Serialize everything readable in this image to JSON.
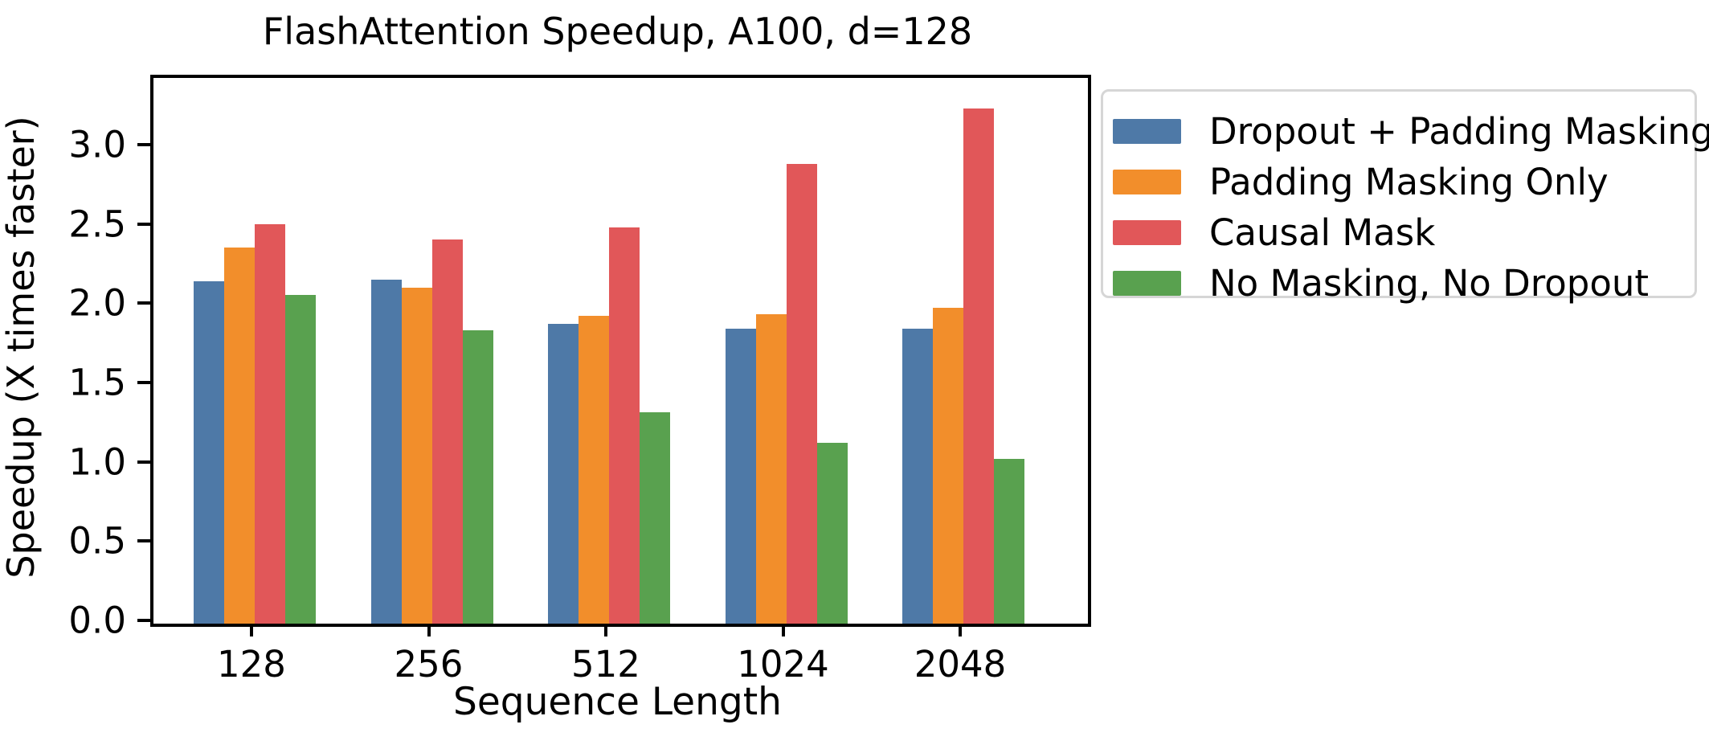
{
  "chart_data": {
    "type": "bar",
    "title": "FlashAttention Speedup, A100, d=128",
    "xlabel": "Sequence Length",
    "ylabel": "Speedup (X times faster)",
    "categories": [
      "128",
      "256",
      "512",
      "1024",
      "2048"
    ],
    "series": [
      {
        "name": "Dropout + Padding Masking",
        "color": "#4E79A7",
        "values": [
          2.16,
          2.17,
          1.89,
          1.86,
          1.86
        ]
      },
      {
        "name": "Padding Masking Only",
        "color": "#F28E2B",
        "values": [
          2.37,
          2.12,
          1.94,
          1.95,
          1.99
        ]
      },
      {
        "name": "Causal Mask",
        "color": "#E15759",
        "values": [
          2.52,
          2.42,
          2.5,
          2.9,
          3.25
        ]
      },
      {
        "name": "No Masking, No Dropout",
        "color": "#59A14F",
        "values": [
          2.07,
          1.85,
          1.33,
          1.14,
          1.04
        ]
      }
    ],
    "ylim": [
      0,
      3.44
    ],
    "yticks": [
      0.0,
      0.5,
      1.0,
      1.5,
      2.0,
      2.5,
      3.0
    ],
    "ytick_labels": [
      "0.0",
      "0.5",
      "1.0",
      "1.5",
      "2.0",
      "2.5",
      "3.0"
    ],
    "grid": false,
    "legend_position": "upper-right-outside"
  },
  "colors": {
    "background": "#ffffff",
    "axis": "#000000",
    "text": "#000000",
    "legend_border": "#d6d6d6"
  }
}
